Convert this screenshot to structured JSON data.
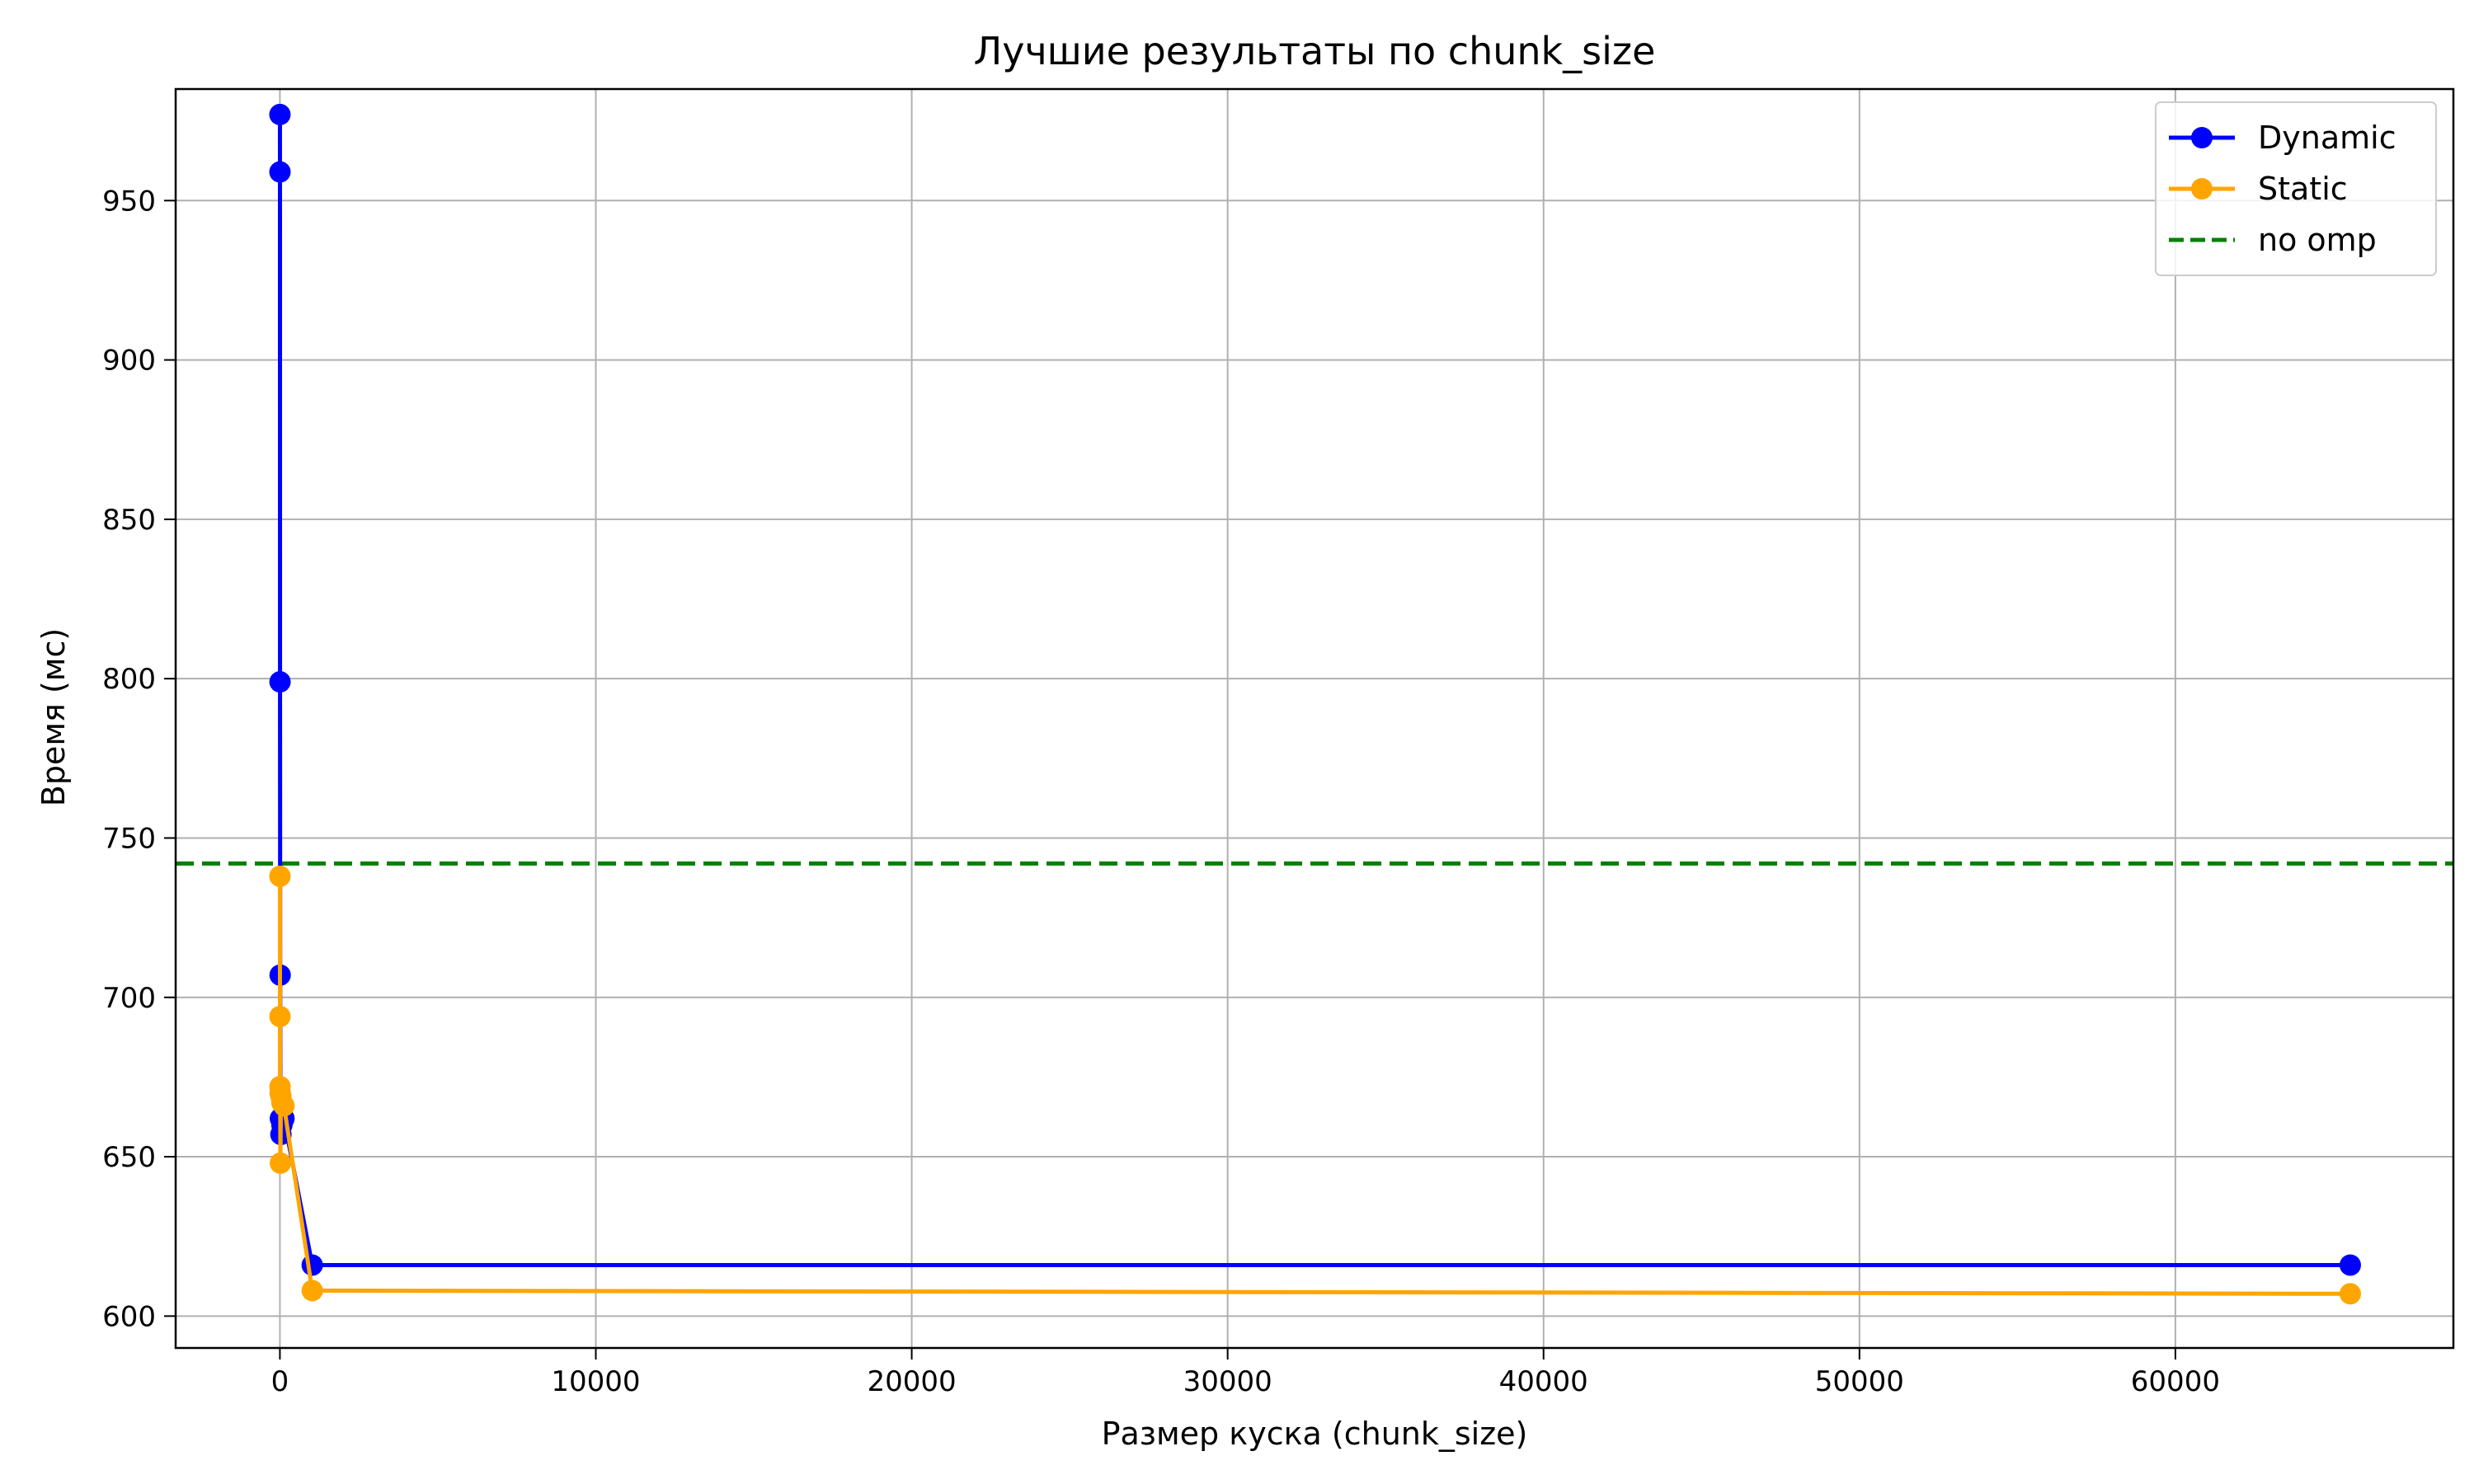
{
  "chart_data": {
    "type": "line",
    "title": "Лучшие результаты по chunk_size",
    "xlabel": "Размер куска (chunk_size)",
    "ylabel": "Время (мс)",
    "xlim": [
      -3300,
      68800
    ],
    "ylim": [
      590,
      985
    ],
    "x_ticks": [
      0,
      10000,
      20000,
      30000,
      40000,
      50000,
      60000
    ],
    "y_ticks": [
      600,
      650,
      700,
      750,
      800,
      850,
      900,
      950
    ],
    "grid": true,
    "legend_position": "top-right",
    "series": [
      {
        "name": "Dynamic",
        "color": "#0000ff",
        "marker": "circle",
        "line_style": "solid",
        "x": [
          1,
          2,
          4,
          8,
          16,
          32,
          64,
          128,
          1024,
          65536
        ],
        "y": [
          977,
          959,
          799,
          707,
          662,
          657,
          660,
          662,
          616,
          616
        ]
      },
      {
        "name": "Static",
        "color": "#ffa500",
        "marker": "circle",
        "line_style": "solid",
        "x": [
          1,
          2,
          4,
          8,
          16,
          32,
          64,
          128,
          1024,
          65536
        ],
        "y": [
          738,
          694,
          672,
          670,
          648,
          669,
          667,
          666,
          608,
          607
        ]
      }
    ],
    "reference_lines": [
      {
        "name": "no omp",
        "color": "#008000",
        "line_style": "dashed",
        "y": 742
      }
    ]
  }
}
